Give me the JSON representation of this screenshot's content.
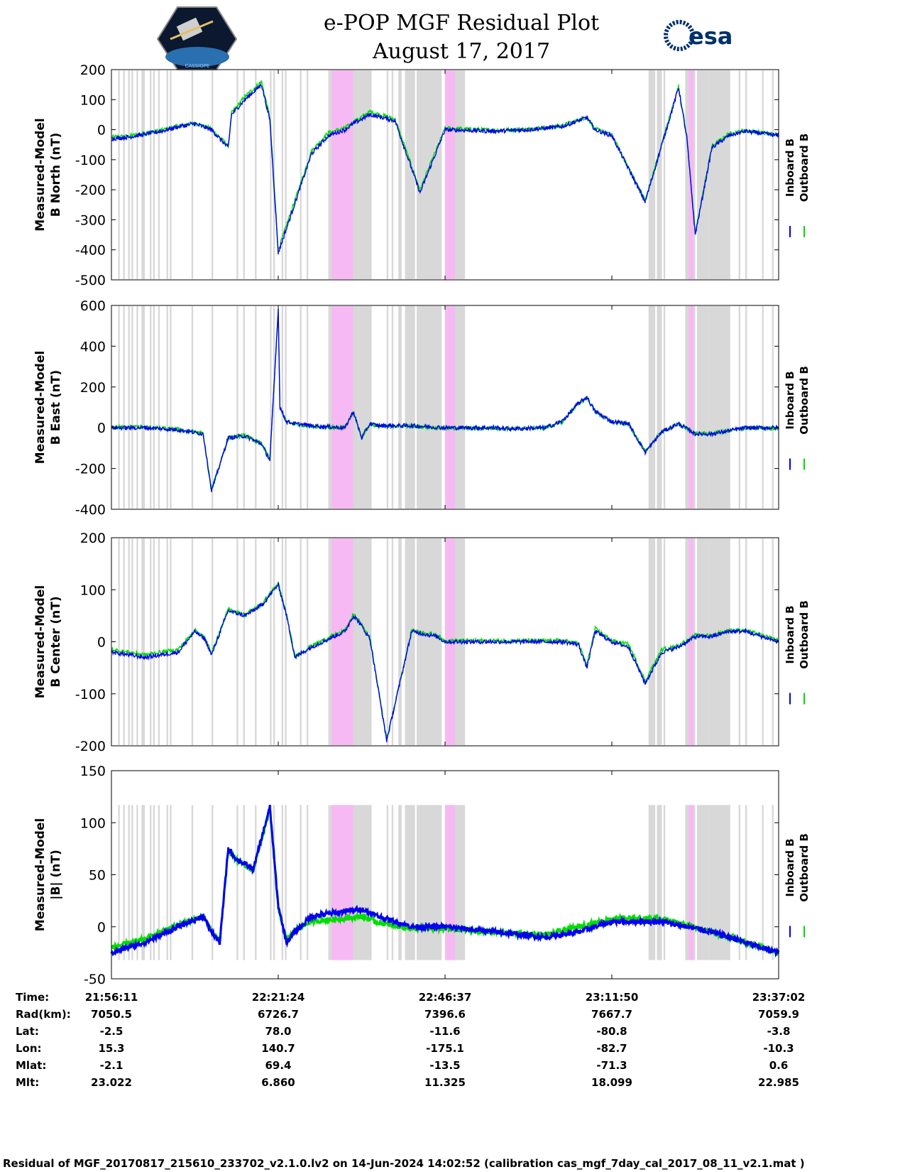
{
  "title": {
    "line1": "e-POP MGF Residual Plot",
    "line2": "August 17, 2017"
  },
  "logos": {
    "left_name": "cassiope-logo",
    "left_text": "CASSIOPE",
    "right_text": "esa"
  },
  "colors": {
    "inboard": "#0000ee",
    "outboard": "#00dd00",
    "gap_gray": "#d8d8d8",
    "gap_pink": "#f7b9f3"
  },
  "legend": {
    "inboard": "Inboard B",
    "outboard": "Outboard B"
  },
  "chart_data": [
    {
      "type": "line",
      "ylabel": [
        "Measured-Model",
        "B North (nT)"
      ],
      "ylim": [
        -500,
        200
      ],
      "yticks": [
        200,
        100,
        0,
        -100,
        -200,
        -300,
        -400,
        -500
      ],
      "x": [
        0,
        10,
        20,
        30,
        40,
        50,
        60,
        70,
        72,
        80,
        90,
        95,
        100,
        120,
        130,
        140,
        145,
        155,
        170,
        185,
        200,
        230,
        250,
        270,
        285,
        290,
        300,
        320,
        340,
        345,
        350,
        360,
        370,
        380,
        400
      ],
      "series": [
        {
          "name": "Inboard B",
          "values": [
            -30,
            -25,
            -15,
            -5,
            10,
            20,
            0,
            -60,
            50,
            100,
            150,
            30,
            -410,
            -80,
            -20,
            0,
            20,
            50,
            30,
            -210,
            0,
            -5,
            0,
            10,
            40,
            0,
            -20,
            -240,
            140,
            -30,
            -350,
            -60,
            -20,
            -5,
            -20
          ]
        },
        {
          "name": "Outboard B",
          "values": [
            -25,
            -22,
            -12,
            -2,
            12,
            22,
            3,
            -55,
            55,
            110,
            160,
            40,
            -400,
            -70,
            -10,
            5,
            25,
            60,
            35,
            -200,
            5,
            -2,
            2,
            12,
            42,
            2,
            -18,
            -235,
            145,
            -25,
            -345,
            -55,
            -15,
            -2,
            -18
          ]
        }
      ]
    },
    {
      "type": "line",
      "ylabel": [
        "Measured-Model",
        "B East (nT)"
      ],
      "ylim": [
        -400,
        600
      ],
      "yticks": [
        600,
        400,
        200,
        0,
        -200,
        -400
      ],
      "x": [
        0,
        20,
        40,
        55,
        60,
        70,
        80,
        90,
        95,
        100,
        101,
        105,
        110,
        120,
        140,
        145,
        150,
        155,
        160,
        180,
        200,
        230,
        240,
        260,
        270,
        280,
        285,
        290,
        300,
        310,
        320,
        330,
        340,
        350,
        360,
        380,
        400
      ],
      "series": [
        {
          "name": "Inboard B",
          "values": [
            0,
            0,
            -10,
            -30,
            -310,
            -50,
            -40,
            -80,
            -160,
            580,
            100,
            30,
            20,
            10,
            0,
            80,
            -50,
            20,
            10,
            10,
            0,
            0,
            -5,
            0,
            30,
            120,
            150,
            80,
            30,
            20,
            -120,
            -20,
            20,
            -30,
            -30,
            0,
            0
          ]
        },
        {
          "name": "Outboard B",
          "values": [
            3,
            3,
            -8,
            -28,
            -305,
            -48,
            -38,
            -78,
            -155,
            575,
            98,
            28,
            18,
            8,
            -2,
            78,
            -48,
            18,
            8,
            8,
            -2,
            -2,
            -5,
            0,
            28,
            118,
            148,
            78,
            28,
            18,
            -118,
            -18,
            18,
            -28,
            -28,
            -2,
            -2
          ]
        }
      ]
    },
    {
      "type": "line",
      "ylabel": [
        "Measured-Model",
        "B Center (nT)"
      ],
      "ylim": [
        -200,
        200
      ],
      "yticks": [
        200,
        100,
        0,
        -100,
        -200
      ],
      "x": [
        0,
        20,
        40,
        50,
        56,
        60,
        70,
        80,
        90,
        100,
        105,
        110,
        120,
        140,
        145,
        148,
        155,
        165,
        180,
        195,
        200,
        210,
        230,
        250,
        270,
        280,
        285,
        290,
        300,
        310,
        320,
        330,
        340,
        350,
        360,
        370,
        380,
        400
      ],
      "series": [
        {
          "name": "Inboard B",
          "values": [
            -20,
            -30,
            -20,
            20,
            5,
            -25,
            60,
            50,
            70,
            110,
            50,
            -30,
            -10,
            20,
            50,
            40,
            5,
            -190,
            20,
            10,
            0,
            0,
            0,
            0,
            0,
            -5,
            -50,
            20,
            0,
            -10,
            -80,
            -20,
            -10,
            10,
            10,
            20,
            20,
            0
          ]
        },
        {
          "name": "Outboard B",
          "values": [
            -15,
            -25,
            -15,
            22,
            8,
            -22,
            62,
            52,
            72,
            112,
            52,
            -28,
            -8,
            22,
            52,
            42,
            8,
            -188,
            22,
            12,
            2,
            2,
            2,
            2,
            2,
            -3,
            -45,
            25,
            2,
            -5,
            -75,
            -15,
            -8,
            12,
            12,
            22,
            22,
            2
          ]
        }
      ]
    },
    {
      "type": "line",
      "ylabel": [
        "Measured-Model",
        "|B| (nT)"
      ],
      "ylim": [
        -50,
        150
      ],
      "yticks": [
        150,
        100,
        50,
        0,
        -50
      ],
      "x": [
        0,
        20,
        40,
        55,
        60,
        65,
        70,
        75,
        85,
        95,
        100,
        105,
        110,
        120,
        140,
        150,
        160,
        180,
        200,
        230,
        260,
        280,
        300,
        330,
        360,
        380,
        400
      ],
      "series": [
        {
          "name": "Inboard B",
          "values": [
            -25,
            -15,
            0,
            10,
            -5,
            -15,
            75,
            65,
            55,
            115,
            20,
            -15,
            -5,
            10,
            15,
            17,
            10,
            0,
            0,
            -5,
            -10,
            -5,
            5,
            5,
            -5,
            -15,
            -25
          ]
        },
        {
          "name": "Outboard B",
          "values": [
            -20,
            -12,
            2,
            10,
            -4,
            -13,
            74,
            64,
            54,
            113,
            18,
            -13,
            -3,
            5,
            8,
            10,
            4,
            -2,
            -2,
            -5,
            -8,
            0,
            8,
            8,
            -5,
            -15,
            -25
          ]
        }
      ]
    }
  ],
  "gaps_gray": [
    [
      4,
      5
    ],
    [
      7,
      8
    ],
    [
      10,
      11
    ],
    [
      12,
      13
    ],
    [
      15,
      16
    ],
    [
      18,
      20
    ],
    [
      23,
      24
    ],
    [
      25,
      26
    ],
    [
      28,
      29
    ],
    [
      33,
      34
    ],
    [
      35,
      36
    ],
    [
      48,
      49
    ],
    [
      60,
      61
    ],
    [
      75,
      76
    ],
    [
      79,
      80
    ],
    [
      86,
      87
    ],
    [
      95,
      96
    ],
    [
      97,
      98
    ],
    [
      102,
      103
    ],
    [
      104,
      105
    ],
    [
      113,
      114
    ],
    [
      117,
      118
    ],
    [
      130,
      131
    ],
    [
      131,
      132
    ],
    [
      132,
      148
    ],
    [
      148,
      156
    ],
    [
      165,
      166
    ],
    [
      168,
      169
    ],
    [
      172,
      174
    ],
    [
      176,
      182
    ],
    [
      183,
      198
    ],
    [
      201,
      202
    ],
    [
      202,
      212
    ],
    [
      322,
      324
    ],
    [
      324,
      326
    ],
    [
      327,
      330
    ],
    [
      331,
      332
    ],
    [
      344,
      346
    ],
    [
      348,
      350
    ],
    [
      351,
      358
    ],
    [
      358,
      371
    ],
    [
      376,
      377
    ],
    [
      380,
      381
    ],
    [
      390,
      391
    ],
    [
      396,
      397
    ]
  ],
  "gaps_pink": [
    [
      132,
      145
    ],
    [
      200,
      206
    ],
    [
      346,
      349
    ]
  ],
  "xticks": [
    0,
    100,
    200,
    300,
    400
  ],
  "table": {
    "labels": [
      "Time:",
      "Rad(km):",
      "Lat:",
      "Lon:",
      "Mlat:",
      "Mlt:"
    ],
    "columns": [
      [
        "21:56:11",
        "7050.5",
        "-2.5",
        "15.3",
        "-2.1",
        "23.022"
      ],
      [
        "22:21:24",
        "6726.7",
        "78.0",
        "140.7",
        "69.4",
        "6.860"
      ],
      [
        "22:46:37",
        "7396.6",
        "-11.6",
        "-175.1",
        "-13.5",
        "11.325"
      ],
      [
        "23:11:50",
        "7667.7",
        "-80.8",
        "-82.7",
        "-71.3",
        "18.099"
      ],
      [
        "23:37:02",
        "7059.9",
        "-3.8",
        "-10.3",
        "0.6",
        "22.985"
      ]
    ]
  },
  "footer": "Residual of MGF_20170817_215610_233702_v2.1.0.lv2 on 14-Jun-2024 14:02:52 (calibration cas_mgf_7day_cal_2017_08_11_v2.1.mat )"
}
